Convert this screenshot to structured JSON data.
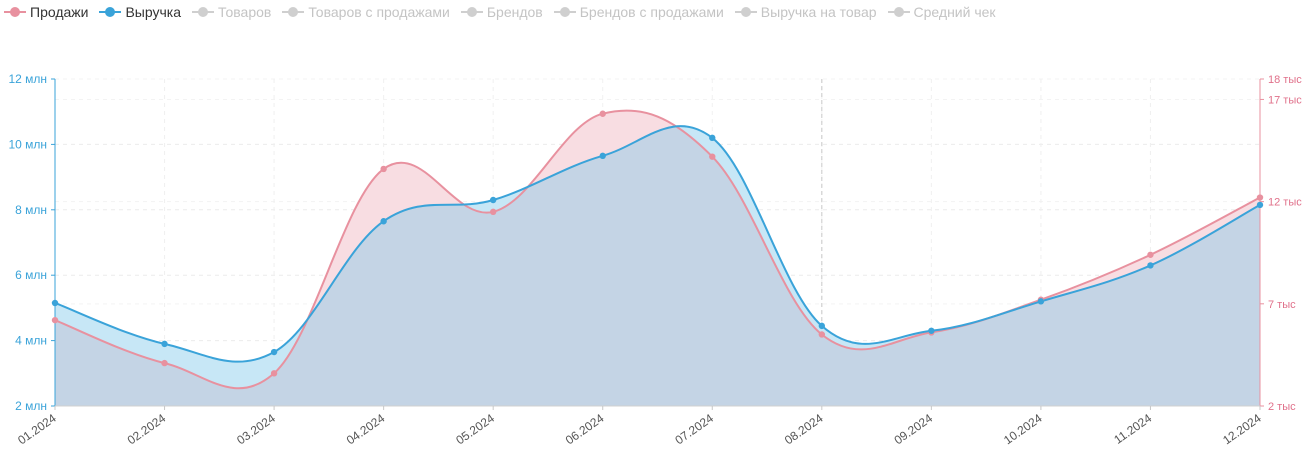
{
  "legend": [
    {
      "label": "Продажи",
      "color": "#e8919f",
      "active": true
    },
    {
      "label": "Выручка",
      "color": "#3aa3d9",
      "active": true
    },
    {
      "label": "Товаров",
      "color": "#cfcfcf",
      "active": false
    },
    {
      "label": "Товаров с продажами",
      "color": "#cfcfcf",
      "active": false
    },
    {
      "label": "Брендов",
      "color": "#cfcfcf",
      "active": false
    },
    {
      "label": "Брендов с продажами",
      "color": "#cfcfcf",
      "active": false
    },
    {
      "label": "Выручка на товар",
      "color": "#cfcfcf",
      "active": false
    },
    {
      "label": "Средний чек",
      "color": "#cfcfcf",
      "active": false
    }
  ],
  "chart_data": {
    "type": "area",
    "categories": [
      "01.2024",
      "02.2024",
      "03.2024",
      "04.2024",
      "05.2024",
      "06.2024",
      "07.2024",
      "08.2024",
      "09.2024",
      "10.2024",
      "11.2024",
      "12.2024"
    ],
    "series": [
      {
        "name": "Выручка",
        "axis": "left",
        "color": "#3aa3d9",
        "fill": "#c7e7f6",
        "values": [
          5150000,
          3900000,
          3650000,
          7650000,
          8300000,
          9650000,
          10200000,
          4450000,
          4300000,
          5200000,
          6300000,
          8150000
        ]
      },
      {
        "name": "Продажи",
        "axis": "right",
        "color": "#e8919f",
        "fill": "#f8dde2",
        "values": [
          6200,
          4100,
          3600,
          13600,
          11500,
          16300,
          14200,
          5500,
          5600,
          7200,
          9400,
          12200
        ]
      }
    ],
    "left_axis": {
      "min": 2000000,
      "max": 12000000,
      "ticks": [
        {
          "value": 2000000,
          "label": "2 млн"
        },
        {
          "value": 4000000,
          "label": "4 млн"
        },
        {
          "value": 6000000,
          "label": "6 млн"
        },
        {
          "value": 8000000,
          "label": "8 млн"
        },
        {
          "value": 10000000,
          "label": "10 млн"
        },
        {
          "value": 12000000,
          "label": "12 млн"
        }
      ]
    },
    "right_axis": {
      "min": 2000,
      "max": 18000,
      "ticks": [
        {
          "value": 2000,
          "label": "2 тыс"
        },
        {
          "value": 7000,
          "label": "7 тыс"
        },
        {
          "value": 12000,
          "label": "12 тыс"
        },
        {
          "value": 17000,
          "label": "17 тыс"
        },
        {
          "value": 18000,
          "label": "18 тыс"
        }
      ]
    },
    "grid": true,
    "legend_position": "top-left",
    "highlighted_category": "08.2024",
    "overlap_fill": "#c4d4e5"
  }
}
